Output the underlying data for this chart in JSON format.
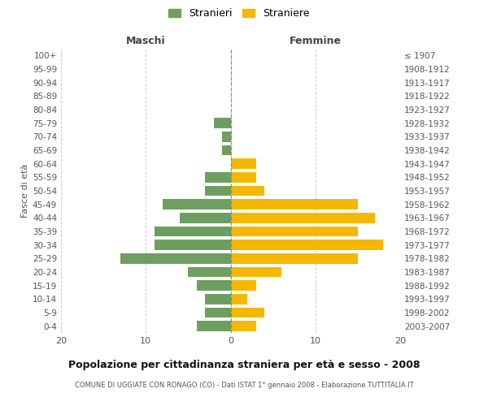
{
  "age_groups": [
    "0-4",
    "5-9",
    "10-14",
    "15-19",
    "20-24",
    "25-29",
    "30-34",
    "35-39",
    "40-44",
    "45-49",
    "50-54",
    "55-59",
    "60-64",
    "65-69",
    "70-74",
    "75-79",
    "80-84",
    "85-89",
    "90-94",
    "95-99",
    "100+"
  ],
  "birth_years": [
    "2003-2007",
    "1998-2002",
    "1993-1997",
    "1988-1992",
    "1983-1987",
    "1978-1982",
    "1973-1977",
    "1968-1972",
    "1963-1967",
    "1958-1962",
    "1953-1957",
    "1948-1952",
    "1943-1947",
    "1938-1942",
    "1933-1937",
    "1928-1932",
    "1923-1927",
    "1918-1922",
    "1913-1917",
    "1908-1912",
    "≤ 1907"
  ],
  "males": [
    4,
    3,
    3,
    4,
    5,
    13,
    9,
    9,
    6,
    8,
    3,
    3,
    0,
    1,
    1,
    2,
    0,
    0,
    0,
    0,
    0
  ],
  "females": [
    3,
    4,
    2,
    3,
    6,
    15,
    18,
    15,
    17,
    15,
    4,
    3,
    3,
    0,
    0,
    0,
    0,
    0,
    0,
    0,
    0
  ],
  "color_males": "#6e9e60",
  "color_females": "#f5b800",
  "background_color": "#ffffff",
  "grid_color": "#cccccc",
  "title": "Popolazione per cittadinanza straniera per età e sesso - 2008",
  "subtitle": "COMUNE DI UGGIATE CON RONAGO (CO) - Dati ISTAT 1° gennaio 2008 - Elaborazione TUTTITALIA.IT",
  "xlabel_left": "Maschi",
  "xlabel_right": "Femmine",
  "ylabel_left": "Fasce di età",
  "legend_males": "Stranieri",
  "legend_females": "Straniere",
  "xlim": 20,
  "center_line_color": "#888855"
}
